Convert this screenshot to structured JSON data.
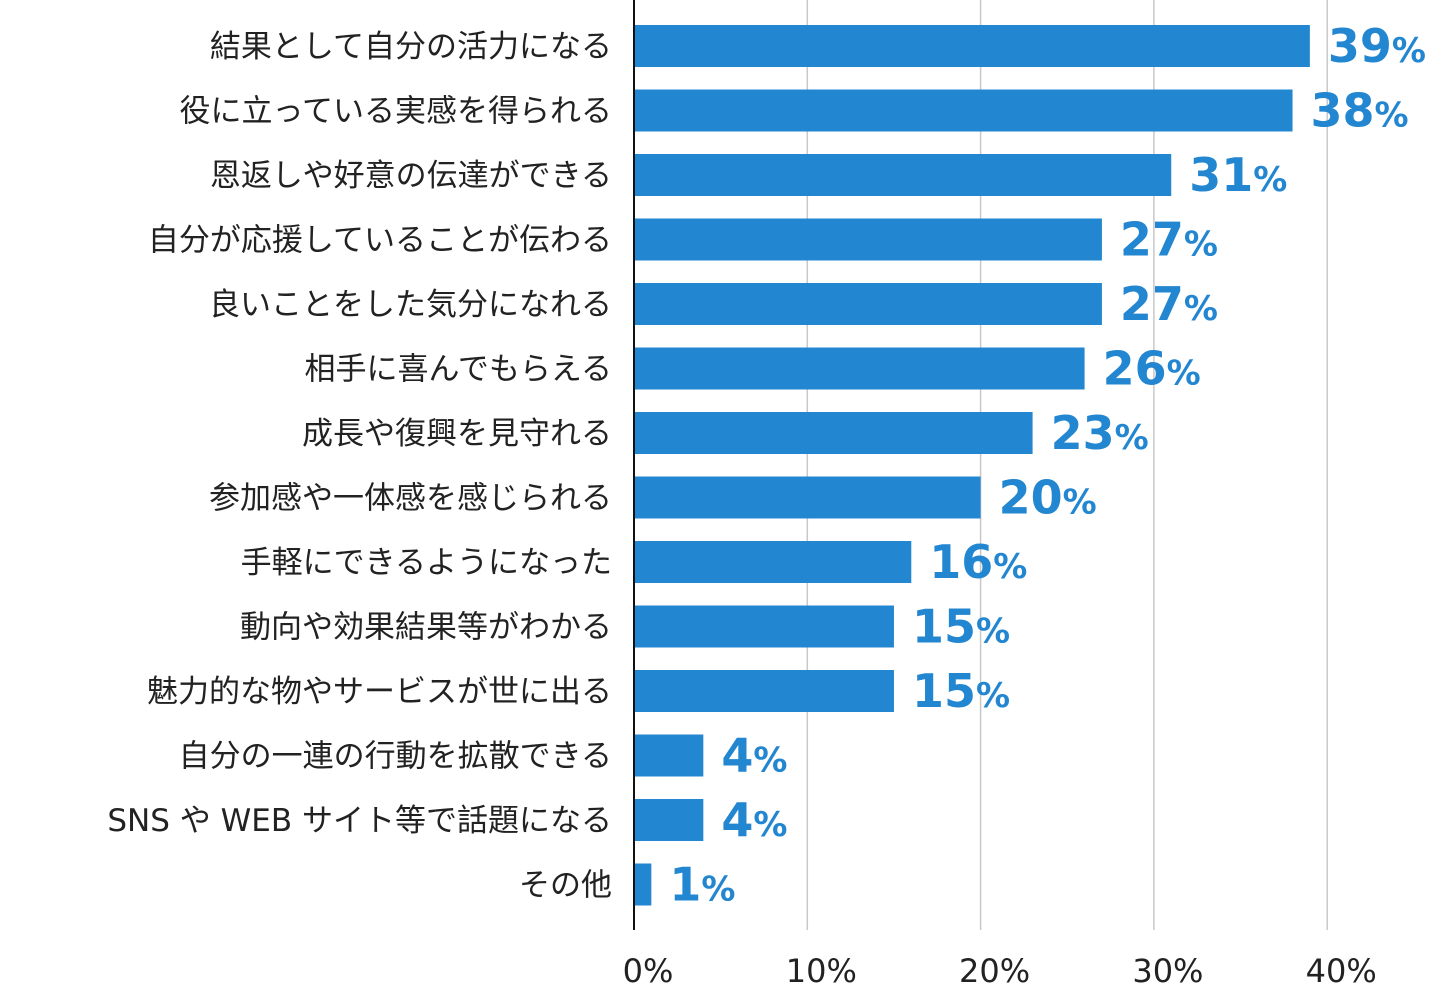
{
  "chart_data": {
    "type": "bar",
    "orientation": "horizontal",
    "categories": [
      "結果として自分の活力になる",
      "役に立っている実感を得られる",
      "恩返しや好意の伝達ができる",
      "自分が応援していることが伝わる",
      "良いことをした気分になれる",
      "相手に喜んでもらえる",
      "成長や復興を見守れる",
      "参加感や一体感を感じられる",
      "手軽にできるようになった",
      "動向や効果結果等がわかる",
      "魅力的な物やサービスが世に出る",
      "自分の一連の行動を拡散できる",
      "SNS や WEB サイト等で話題になる",
      "その他"
    ],
    "values": [
      39,
      38,
      31,
      27,
      27,
      26,
      23,
      20,
      16,
      15,
      15,
      4,
      4,
      1
    ],
    "value_labels": [
      "39",
      "38",
      "31",
      "27",
      "27",
      "26",
      "23",
      "20",
      "16",
      "15",
      "15",
      "4",
      "4",
      "1"
    ],
    "value_unit": "%",
    "xlim": [
      0,
      40
    ],
    "x_ticks": [
      "0%",
      "10%",
      "20%",
      "30%",
      "40%"
    ],
    "grid": true,
    "bar_color": "#2386d0",
    "label_color": "#2386d0",
    "title": "",
    "xlabel": "",
    "ylabel": ""
  }
}
